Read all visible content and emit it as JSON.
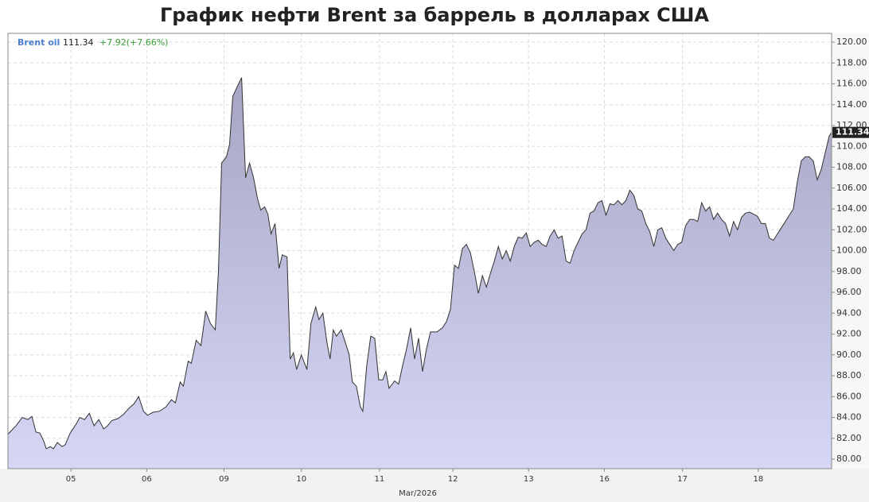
{
  "chart_data": {
    "type": "area",
    "title": "График нефти Brent за баррель в долларах США",
    "legend_name": "Brent oil",
    "last_value": "111.34",
    "change": "+7.92(+7.66%)",
    "x_label": "Mar/2026",
    "series": [
      {
        "name": "Brent oil",
        "color": "#333333",
        "x": [
          10,
          20,
          28,
          35,
          40,
          45,
          50,
          55,
          58,
          63,
          67,
          72,
          78,
          82,
          88,
          95,
          100,
          106,
          112,
          118,
          124,
          130,
          135,
          140,
          148,
          155,
          162,
          168,
          174,
          180,
          185,
          192,
          200,
          208,
          215,
          220,
          226,
          230,
          236,
          240,
          246,
          252,
          258,
          264,
          270,
          274,
          278,
          284,
          288,
          292,
          298,
          303,
          308,
          313,
          318,
          323,
          327,
          332,
          336,
          340,
          345,
          350,
          354,
          360,
          364,
          368,
          372,
          378,
          385,
          390,
          396,
          400,
          405,
          410,
          414,
          418,
          422,
          428,
          434,
          438,
          442,
          447,
          452,
          455,
          460,
          465,
          470,
          475,
          480,
          484,
          488,
          495,
          500,
          505,
          510,
          515,
          520,
          525,
          530,
          535,
          540,
          548,
          555,
          560,
          565,
          570,
          575,
          580,
          585,
          590,
          595,
          600,
          605,
          610,
          615,
          620,
          625,
          630,
          635,
          640,
          645,
          650,
          655,
          660,
          665,
          670,
          675,
          680,
          685,
          690,
          695,
          700,
          705,
          710,
          715,
          720,
          725,
          730,
          735,
          740,
          745,
          750,
          755,
          760,
          765,
          770,
          775,
          780,
          785,
          790,
          795,
          800,
          805,
          810,
          815,
          820,
          825,
          830,
          835,
          840,
          845,
          850,
          855,
          860,
          865,
          870,
          875,
          880,
          885,
          890,
          895,
          900,
          905,
          910,
          915,
          920,
          925,
          930,
          935,
          940,
          945,
          950,
          955,
          960,
          965,
          970,
          975,
          980,
          985,
          990,
          995,
          1000,
          1005,
          1010,
          1015,
          1020,
          1025,
          1030,
          1035,
          1040,
          1043
        ],
        "values": [
          82.4,
          83.2,
          84.0,
          83.8,
          84.1,
          82.6,
          82.5,
          81.7,
          81.0,
          81.2,
          81.0,
          81.6,
          81.2,
          81.4,
          82.5,
          83.3,
          84.0,
          83.8,
          84.4,
          83.2,
          83.8,
          82.9,
          83.2,
          83.7,
          83.9,
          84.3,
          84.9,
          85.3,
          86.0,
          84.6,
          84.2,
          84.5,
          84.6,
          85.0,
          85.7,
          85.4,
          87.4,
          87.0,
          89.4,
          89.2,
          91.4,
          90.9,
          94.2,
          93.0,
          92.4,
          98.0,
          108.4,
          109.0,
          110.2,
          114.8,
          115.8,
          116.6,
          107.0,
          108.4,
          107.0,
          105.0,
          103.9,
          104.2,
          103.5,
          101.6,
          102.6,
          98.3,
          99.6,
          99.4,
          89.6,
          90.2,
          88.6,
          90.0,
          88.6,
          93.0,
          94.6,
          93.4,
          94.0,
          91.2,
          89.6,
          92.4,
          91.8,
          92.4,
          91.0,
          90.0,
          87.4,
          87.0,
          85.0,
          84.6,
          89.0,
          91.8,
          91.6,
          87.6,
          87.6,
          88.4,
          86.8,
          87.5,
          87.2,
          89.0,
          90.6,
          92.6,
          89.6,
          91.6,
          88.4,
          90.6,
          92.2,
          92.2,
          92.6,
          93.2,
          94.4,
          98.6,
          98.3,
          100.2,
          100.6,
          99.8,
          98.0,
          95.9,
          97.6,
          96.5,
          97.8,
          99.0,
          100.4,
          99.2,
          100.0,
          99.0,
          100.4,
          101.3,
          101.2,
          101.7,
          100.4,
          100.8,
          101.0,
          100.6,
          100.4,
          101.4,
          102.0,
          101.2,
          101.4,
          99.0,
          98.8,
          100.0,
          100.8,
          101.6,
          102.0,
          103.6,
          103.8,
          104.6,
          104.8,
          103.4,
          104.5,
          104.4,
          104.8,
          104.4,
          104.8,
          105.8,
          105.3,
          104.0,
          103.8,
          102.6,
          101.8,
          100.4,
          102.0,
          102.2,
          101.2,
          100.6,
          100.0,
          100.6,
          100.8,
          102.4,
          103.0,
          103.0,
          102.8,
          104.6,
          103.8,
          104.2,
          103.0,
          103.6,
          103.0,
          102.6,
          101.4,
          102.8,
          102.0,
          103.2,
          103.6,
          103.7,
          103.5,
          103.3,
          102.6,
          102.6,
          101.2,
          101.0,
          101.6,
          102.2,
          102.8,
          103.4,
          104.0,
          106.6,
          108.6,
          109.0,
          109.0,
          108.6,
          106.8,
          107.8,
          109.4,
          111.0,
          111.34
        ]
      }
    ],
    "area_color_top": "#a6a6c4",
    "area_color_bottom": "#d6d6f6",
    "xlim": [
      10,
      1043
    ],
    "xticks": [
      {
        "value": 89,
        "label": "05"
      },
      {
        "value": 184,
        "label": "06"
      },
      {
        "value": 281,
        "label": "09"
      },
      {
        "value": 378,
        "label": "10"
      },
      {
        "value": 476,
        "label": "11"
      },
      {
        "value": 568,
        "label": "12"
      },
      {
        "value": 663,
        "label": "13"
      },
      {
        "value": 758,
        "label": "16"
      },
      {
        "value": 856,
        "label": "17"
      },
      {
        "value": 951,
        "label": "18"
      }
    ],
    "ylim": [
      79.09,
      120.84
    ],
    "yticks": [
      {
        "value": 80,
        "label": "80.00"
      },
      {
        "value": 82,
        "label": "82.00"
      },
      {
        "value": 84,
        "label": "84.00"
      },
      {
        "value": 86,
        "label": "86.00"
      },
      {
        "value": 88,
        "label": "88.00"
      },
      {
        "value": 90,
        "label": "90.00"
      },
      {
        "value": 92,
        "label": "92.00"
      },
      {
        "value": 94,
        "label": "94.00"
      },
      {
        "value": 96,
        "label": "96.00"
      },
      {
        "value": 98,
        "label": "98.00"
      },
      {
        "value": 100,
        "label": "100.00"
      },
      {
        "value": 102,
        "label": "102.00"
      },
      {
        "value": 104,
        "label": "104.00"
      },
      {
        "value": 106,
        "label": "106.00"
      },
      {
        "value": 108,
        "label": "108.00"
      },
      {
        "value": 110,
        "label": "110.00"
      },
      {
        "value": 112,
        "label": "112.00"
      },
      {
        "value": 114,
        "label": "114.00"
      },
      {
        "value": 116,
        "label": "116.00"
      },
      {
        "value": 118,
        "label": "118.00"
      },
      {
        "value": 120,
        "label": "120.00"
      }
    ],
    "grid": true
  }
}
